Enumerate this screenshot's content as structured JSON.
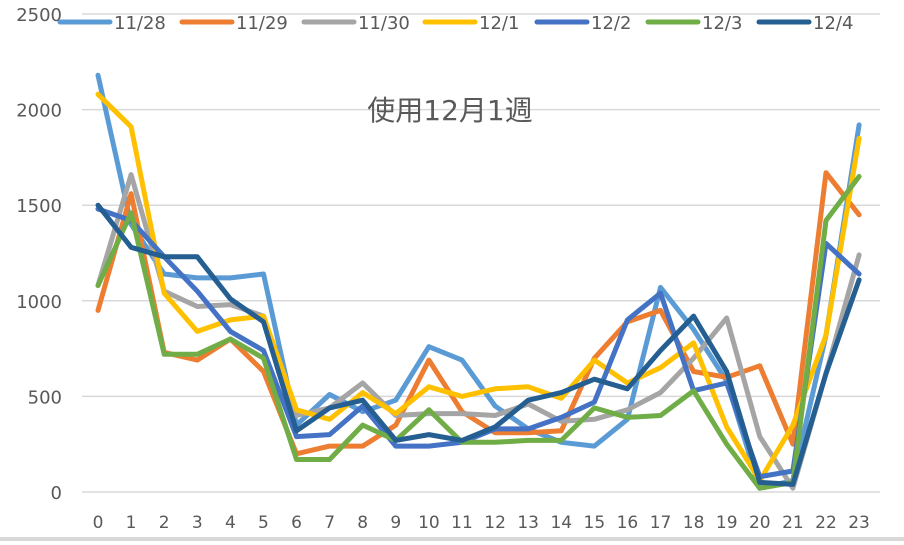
{
  "chart_data": {
    "type": "line",
    "title": "使用12月1週",
    "xlabel": "",
    "ylabel": "",
    "ylim": [
      0,
      2500
    ],
    "yticks": [
      0,
      500,
      1000,
      1500,
      2000,
      2500
    ],
    "grid": true,
    "legend_position": "top",
    "categories": [
      "0",
      "1",
      "2",
      "3",
      "4",
      "5",
      "6",
      "7",
      "8",
      "9",
      "10",
      "11",
      "12",
      "13",
      "14",
      "15",
      "16",
      "17",
      "18",
      "19",
      "20",
      "21",
      "22",
      "23"
    ],
    "series": [
      {
        "name": "11/28",
        "color": "#5b9bd5",
        "values": [
          2180,
          1400,
          1140,
          1120,
          1120,
          1140,
          350,
          510,
          420,
          480,
          760,
          690,
          450,
          330,
          260,
          240,
          380,
          1070,
          850,
          580,
          20,
          60,
          820,
          1920
        ]
      },
      {
        "name": "11/29",
        "color": "#ed7d31",
        "values": [
          950,
          1560,
          730,
          690,
          800,
          630,
          200,
          240,
          240,
          350,
          690,
          420,
          310,
          310,
          320,
          700,
          890,
          950,
          630,
          600,
          660,
          250,
          1670,
          1450
        ]
      },
      {
        "name": "11/30",
        "color": "#a5a5a5",
        "values": [
          1080,
          1660,
          1050,
          970,
          980,
          920,
          400,
          440,
          570,
          400,
          410,
          410,
          400,
          460,
          370,
          380,
          430,
          520,
          700,
          910,
          290,
          20,
          620,
          1240
        ]
      },
      {
        "name": "12/1",
        "color": "#ffc000",
        "values": [
          2080,
          1910,
          1040,
          840,
          900,
          920,
          430,
          380,
          520,
          410,
          550,
          500,
          540,
          550,
          490,
          690,
          570,
          650,
          780,
          340,
          60,
          350,
          820,
          1850
        ]
      },
      {
        "name": "12/2",
        "color": "#4472c4",
        "values": [
          1480,
          1420,
          1230,
          1050,
          840,
          740,
          290,
          300,
          450,
          240,
          240,
          260,
          330,
          330,
          390,
          470,
          900,
          1040,
          530,
          570,
          80,
          110,
          1300,
          1140
        ]
      },
      {
        "name": "12/3",
        "color": "#70ad47",
        "values": [
          1080,
          1460,
          720,
          720,
          800,
          700,
          170,
          170,
          350,
          270,
          430,
          260,
          260,
          270,
          270,
          440,
          390,
          400,
          530,
          250,
          20,
          50,
          1420,
          1650
        ]
      },
      {
        "name": "12/4",
        "color": "#255e91",
        "values": [
          1500,
          1280,
          1230,
          1230,
          1010,
          890,
          320,
          440,
          480,
          270,
          300,
          270,
          340,
          480,
          520,
          590,
          540,
          740,
          920,
          630,
          50,
          40,
          620,
          1110
        ]
      }
    ]
  },
  "colors": {
    "gridline": "#d9d9d9",
    "axis_text": "#595959",
    "background": "#ffffff"
  }
}
